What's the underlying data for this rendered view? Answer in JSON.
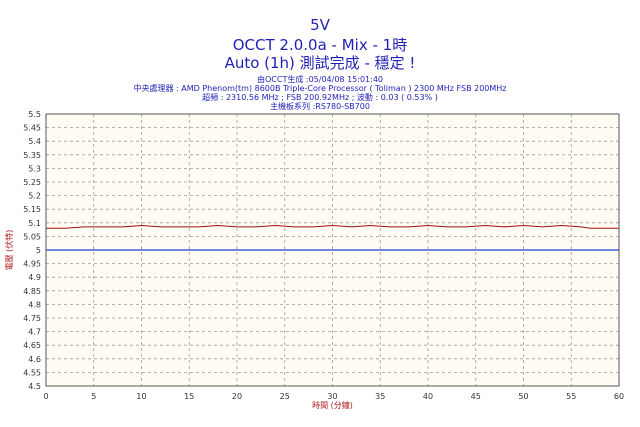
{
  "header": {
    "title": "5V",
    "subtitle": "OCCT 2.0.0a - Mix - 1時",
    "status": "Auto (1h) 測試完成 - 穩定 !",
    "info_line1": "由OCCT生成 :05/04/08 15:01:40",
    "info_line2": "中央處理器 : AMD Phenom(tm) 8600B Triple-Core Processor ( Toliman ) 2300 MHz FSB 200MHz",
    "info_line3": "超頻 : 2310.56 MHz ; FSB 200.92MHz ; 波動 : 0.03 ( 0.53% )",
    "info_line4": "主機板系列 :RS780-SB700"
  },
  "chart_data": {
    "type": "line",
    "xlabel": "時間 (分鐘)",
    "ylabel": "電壓 (伏特)",
    "xlim": [
      0,
      60
    ],
    "ylim": [
      4.5,
      5.5
    ],
    "x_ticks": [
      0,
      5,
      10,
      15,
      20,
      25,
      30,
      35,
      40,
      45,
      50,
      55,
      60
    ],
    "y_ticks": [
      "4.5",
      "4.55",
      "4.6",
      "4.65",
      "4.7",
      "4.75",
      "4.8",
      "4.85",
      "4.9",
      "4.95",
      "5",
      "5.05",
      "5.1",
      "5.15",
      "5.2",
      "5.25",
      "5.3",
      "5.35",
      "5.4",
      "5.45",
      "5.5"
    ],
    "grid": true,
    "reference_line": 5.0,
    "series": [
      {
        "color": "#a01010",
        "x": [
          0,
          2,
          4,
          5,
          6,
          8,
          10,
          12,
          14,
          16,
          18,
          20,
          22,
          24,
          26,
          28,
          30,
          32,
          34,
          36,
          38,
          40,
          42,
          44,
          46,
          48,
          50,
          52,
          54,
          56,
          57,
          60
        ],
        "values": [
          5.08,
          5.08,
          5.085,
          5.085,
          5.085,
          5.085,
          5.09,
          5.085,
          5.085,
          5.085,
          5.09,
          5.085,
          5.085,
          5.09,
          5.085,
          5.085,
          5.09,
          5.085,
          5.09,
          5.085,
          5.085,
          5.09,
          5.085,
          5.085,
          5.09,
          5.085,
          5.09,
          5.085,
          5.09,
          5.085,
          5.08,
          5.08
        ]
      }
    ],
    "colors": {
      "title": "#1f1fb4",
      "plot_bg": "#fffdf3",
      "grid": "#9aa08a",
      "reference": "#1f3fd0",
      "axis_label": "#b01a1a"
    }
  }
}
